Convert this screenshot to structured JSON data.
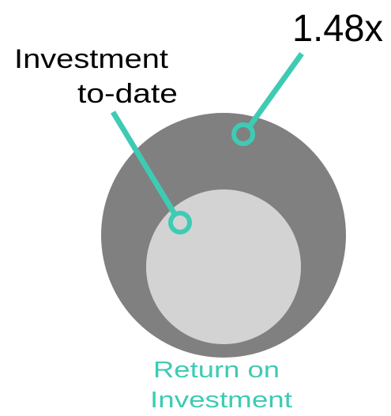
{
  "labels": {
    "ratio": "1.48x",
    "investment": [
      "Investment",
      "to-date"
    ],
    "return": [
      "Return on",
      "Investment"
    ]
  }
}
